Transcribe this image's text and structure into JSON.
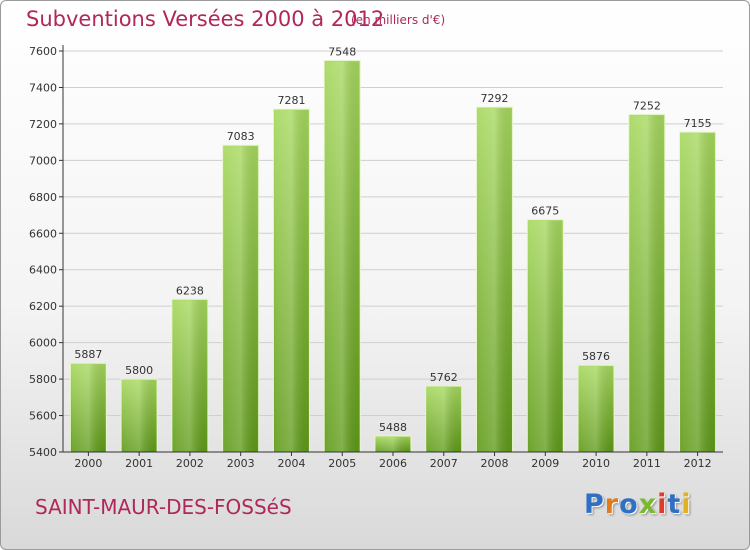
{
  "header": {
    "title": "Subventions Versées 2000 à 2012",
    "unit_note": "(en milliers d'€)"
  },
  "footer": {
    "commune": "SAINT-MAUR-DES-FOSSéS",
    "logo_text": "Proxiti",
    "logo_colors": [
      "#2f6fc4",
      "#e07a1a",
      "#2f6fc4",
      "#7cb82f",
      "#e03a2a",
      "#2f6fc4",
      "#e0b020"
    ]
  },
  "colors": {
    "title": "#b0275a",
    "bar_light": "#a6d85e",
    "bar_dark": "#5f9a18",
    "axis": "#333333",
    "grid": "#cfcfcf"
  },
  "chart_data": {
    "type": "bar",
    "categories": [
      "2000",
      "2001",
      "2002",
      "2003",
      "2004",
      "2005",
      "2006",
      "2007",
      "2008",
      "2009",
      "2010",
      "2011",
      "2012"
    ],
    "values": [
      5887,
      5800,
      6238,
      7083,
      7281,
      7548,
      5488,
      5762,
      7292,
      6675,
      5876,
      7252,
      7155
    ],
    "title": "Subventions Versées 2000 à 2012",
    "subtitle": "(en milliers d'€)",
    "xlabel": "",
    "ylabel": "",
    "ylim": [
      5400,
      7600
    ],
    "yticks": [
      5400,
      5600,
      5800,
      6000,
      6200,
      6400,
      6600,
      6800,
      7000,
      7200,
      7400,
      7600
    ],
    "grid": true,
    "data_labels": true
  }
}
